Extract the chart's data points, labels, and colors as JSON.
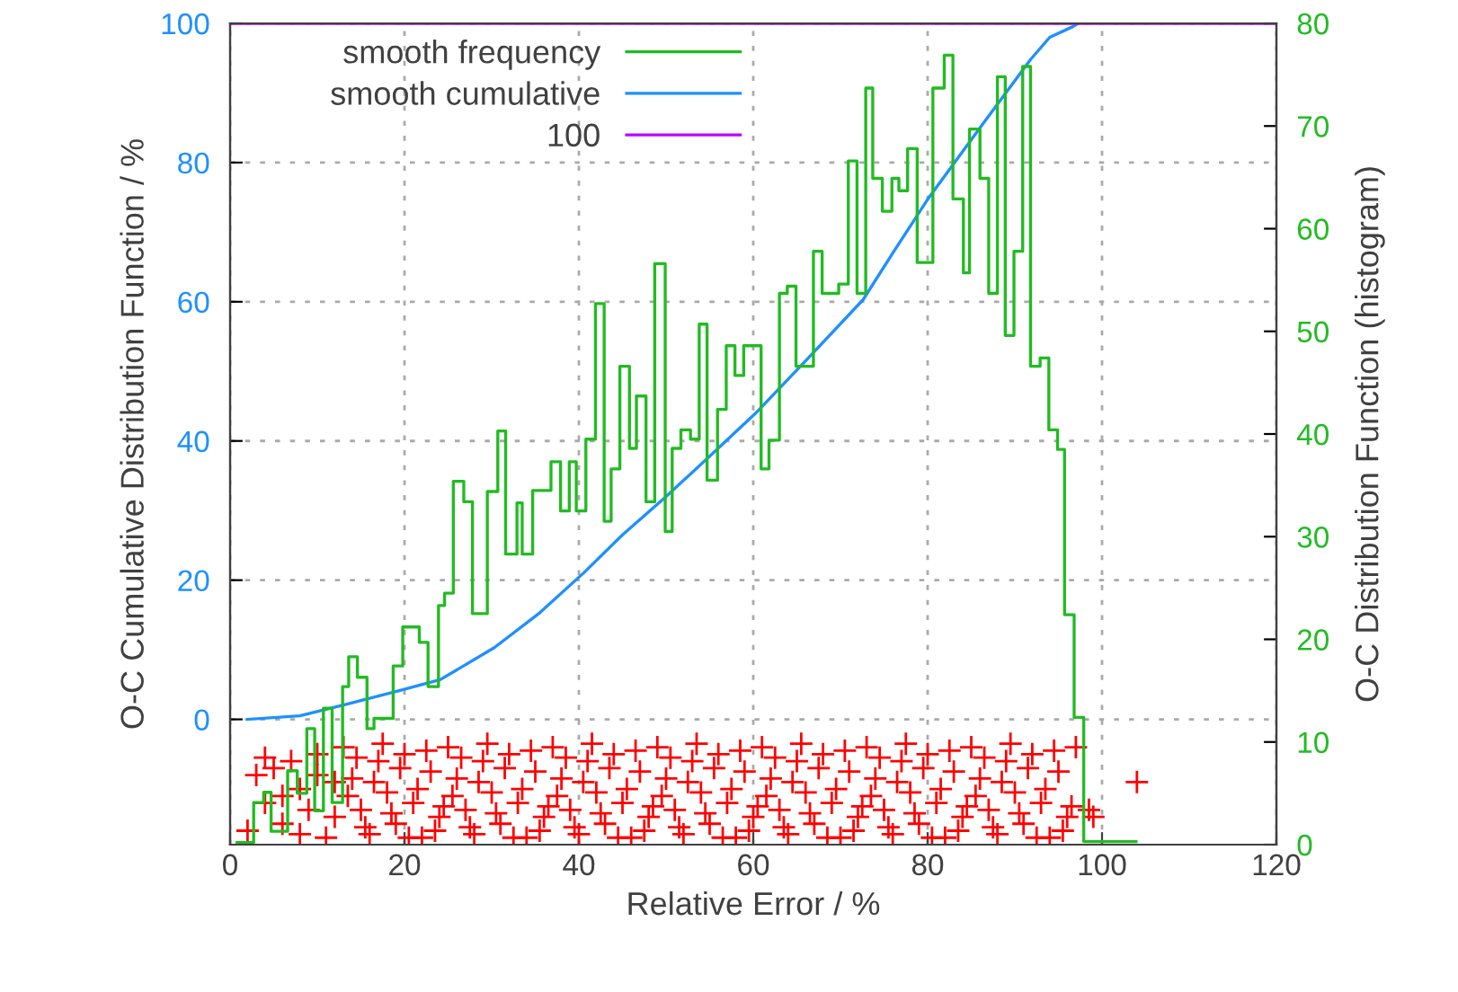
{
  "chart_data": {
    "type": "line",
    "xlabel": "Relative Error / %",
    "ylabel": "O-C Cumulative Distribution Function / %",
    "y2label": "O-C Distribution Function (histogram)",
    "xlim": [
      0,
      120
    ],
    "xticks": [
      0,
      20,
      40,
      60,
      80,
      100,
      120
    ],
    "ylim": [
      -18,
      100
    ],
    "yticks": [
      0,
      20,
      40,
      60,
      80,
      100
    ],
    "y2lim": [
      0,
      80
    ],
    "y2ticks": [
      0,
      10,
      20,
      30,
      40,
      50,
      60,
      70,
      80
    ],
    "grid": true,
    "legend": "top left",
    "line_style": "solid",
    "series": [
      {
        "name": "smooth frequency",
        "type": "step",
        "axis": "y2",
        "color": "#22bb22",
        "x": [
          0.8,
          2.7,
          3.85,
          4.7,
          6.6,
          7.7,
          8.8,
          9.7,
          10.7,
          11.7,
          12.9,
          13.6,
          14.6,
          15.7,
          16.5,
          18.7,
          19.8,
          21.7,
          22.7,
          23.9,
          24.6,
          25.6,
          26.8,
          27.8,
          29.5,
          30.7,
          31.6,
          32.9,
          33.5,
          34.7,
          36.8,
          37.9,
          38.9,
          39.7,
          40.8,
          41.9,
          42.9,
          43.7,
          44.7,
          45.8,
          46.6,
          47.7,
          48.7,
          49.9,
          50.7,
          51.7,
          52.8,
          53.8,
          54.7,
          55.9,
          56.9,
          57.9,
          58.9,
          60.9,
          61.8,
          63.0,
          63.9,
          64.9,
          66.9,
          67.9,
          69.8,
          70.9,
          71.9,
          72.9,
          73.7,
          74.8,
          75.9,
          76.7,
          77.7,
          78.8,
          80.6,
          81.9,
          82.9,
          84.1,
          84.8,
          86.0,
          87.0,
          88.0,
          88.9,
          89.9,
          90.9,
          91.8,
          92.9,
          93.9,
          94.9,
          95.7,
          96.8,
          97.9,
          103.9
        ],
        "values": [
          0.2,
          4.1,
          5.1,
          1.3,
          7.2,
          5.0,
          11.3,
          3.3,
          13.3,
          4.1,
          15.4,
          18.3,
          16.3,
          11.3,
          12.3,
          17.4,
          21.2,
          19.7,
          15.4,
          23.3,
          24.5,
          35.4,
          33.4,
          22.5,
          34.4,
          40.3,
          28.3,
          33.3,
          28.3,
          34.5,
          37.3,
          32.5,
          37.3,
          32.5,
          39.5,
          52.7,
          31.5,
          36.6,
          46.6,
          38.6,
          43.7,
          33.4,
          56.6,
          30.5,
          38.6,
          40.4,
          39.5,
          50.7,
          35.5,
          42.4,
          48.6,
          45.7,
          48.6,
          36.6,
          39.4,
          53.7,
          54.4,
          46.6,
          57.8,
          53.7,
          54.6,
          66.6,
          53.7,
          73.7,
          64.9,
          61.7,
          64.9,
          63.7,
          67.8,
          56.7,
          73.7,
          76.9,
          62.9,
          55.7,
          69.7,
          64.9,
          53.7,
          74.8,
          49.6,
          57.8,
          75.8,
          46.6,
          47.4,
          40.4,
          38.5,
          22.4,
          12.4,
          0.3,
          0.3
        ]
      },
      {
        "name": "smooth cumulative",
        "color": "#1e90ff",
        "x": [
          2,
          8,
          13.1,
          19.3,
          24.1,
          30.3,
          35.5,
          40.6,
          45,
          49.9,
          55,
          60.2,
          66,
          72.6,
          76,
          80.1,
          86,
          91.8,
          94,
          96.6,
          97.3
        ],
        "values": [
          0,
          0.5,
          2.1,
          4.1,
          5.7,
          10.3,
          15.3,
          21.1,
          26.5,
          31.9,
          37.8,
          43.9,
          51.5,
          60.3,
          67,
          74.9,
          85,
          94.8,
          98,
          99.5,
          100
        ]
      },
      {
        "name": "100",
        "color": "#c000ff",
        "x": [
          0,
          120
        ],
        "values": [
          100,
          100
        ]
      },
      {
        "type": "scatter",
        "marker": "cross",
        "color": "#ff0000",
        "x": [
          2,
          3,
          4,
          5,
          6,
          7,
          8,
          9,
          10,
          11,
          12,
          4,
          6,
          8,
          10,
          12,
          98.5,
          99,
          104,
          13,
          14,
          15,
          16,
          17,
          18,
          19,
          20,
          21,
          22,
          23,
          24,
          25,
          26,
          27,
          28,
          29,
          30,
          31,
          32,
          33,
          34,
          35,
          36,
          37,
          38,
          39,
          40,
          41,
          42,
          43,
          44,
          45,
          46,
          47,
          48,
          49,
          50,
          51,
          52,
          53,
          54,
          55,
          56,
          57,
          58,
          59,
          60,
          61,
          62,
          63,
          64,
          65,
          66,
          67,
          68,
          69,
          70,
          71,
          72,
          73,
          74,
          75,
          76,
          77,
          78,
          79,
          80,
          81,
          82,
          83,
          84,
          85,
          86,
          87,
          88,
          89,
          90,
          91,
          92,
          93,
          94,
          95,
          96,
          97,
          13.5,
          14.5,
          15.5,
          16.5,
          17.5,
          18.5,
          19.5,
          20.5,
          21.5,
          22.5,
          23.5,
          24.5,
          25.5,
          26.5,
          27.5,
          28.5,
          29.5,
          30.5,
          31.5,
          32.5,
          33.5,
          34.5,
          35.5,
          36.5,
          37.5,
          38.5,
          39.5,
          40.5,
          41.5,
          42.5,
          43.5,
          44.5,
          45.5,
          46.5,
          47.5,
          48.5,
          49.5,
          50.5,
          51.5,
          52.5,
          53.5,
          54.5,
          55.5,
          56.5,
          57.5,
          58.5,
          59.5,
          60.5,
          61.5,
          62.5,
          63.5,
          64.5,
          65.5,
          66.5,
          67.5,
          68.5,
          69.5,
          70.5,
          71.5,
          72.5,
          73.5,
          74.5,
          75.5,
          76.5,
          77.5,
          78.5,
          79.5,
          80.5,
          81.5,
          82.5,
          83.5,
          84.5,
          85.5,
          86.5,
          87.5,
          88.5,
          89.5,
          90.5,
          91.5,
          92.5,
          93.5,
          94.5,
          95.5,
          96.5
        ],
        "values": [
          -16,
          -8,
          -12,
          -7,
          -15,
          -6,
          -10,
          -13,
          -5,
          -17,
          -9,
          -5.5,
          -11,
          -16.5,
          -8,
          -14,
          -13,
          -14,
          -9,
          -4,
          -8.5,
          -13,
          -16.5,
          -6,
          -10.5,
          -15,
          -5,
          -12,
          -17,
          -7.5,
          -14,
          -4,
          -8.5,
          -13,
          -16.5,
          -6,
          -10.5,
          -15,
          -5,
          -12,
          -17,
          -7.5,
          -14,
          -4,
          -8.5,
          -13,
          -16.5,
          -6,
          -10.5,
          -15,
          -5,
          -12,
          -17,
          -7.5,
          -14,
          -4,
          -8.5,
          -13,
          -16.5,
          -6,
          -10.5,
          -15,
          -5,
          -12,
          -17,
          -7.5,
          -14,
          -4,
          -8.5,
          -13,
          -16.5,
          -6,
          -10.5,
          -15,
          -5,
          -12,
          -17,
          -7.5,
          -14,
          -4,
          -8.5,
          -13,
          -16.5,
          -6,
          -10.5,
          -15,
          -5,
          -12,
          -17,
          -7.5,
          -14,
          -4,
          -8.5,
          -13,
          -16.5,
          -6,
          -10.5,
          -15,
          -5,
          -12,
          -17,
          -7.5,
          -14,
          -4,
          -11,
          -5.5,
          -15.5,
          -9,
          -3.5,
          -13.5,
          -7,
          -17,
          -10,
          -4.5,
          -16,
          -12.5,
          -11,
          -5.5,
          -15.5,
          -9,
          -3.5,
          -13.5,
          -7,
          -17,
          -10,
          -4.5,
          -16,
          -12.5,
          -11,
          -5.5,
          -15.5,
          -9,
          -3.5,
          -13.5,
          -7,
          -17,
          -10,
          -4.5,
          -16,
          -12.5,
          -11,
          -5.5,
          -15.5,
          -9,
          -3.5,
          -13.5,
          -7,
          -17,
          -10,
          -4.5,
          -16,
          -12.5,
          -11,
          -5.5,
          -15.5,
          -9,
          -3.5,
          -13.5,
          -7,
          -17,
          -10,
          -4.5,
          -16,
          -12.5,
          -11,
          -5.5,
          -15.5,
          -9,
          -3.5,
          -13.5,
          -7,
          -17,
          -10,
          -4.5,
          -16,
          -12.5,
          -11,
          -5.5,
          -15.5,
          -9,
          -3.5,
          -13.5,
          -7,
          -17,
          -10,
          -4.5,
          -16,
          -12.5
        ]
      }
    ]
  }
}
